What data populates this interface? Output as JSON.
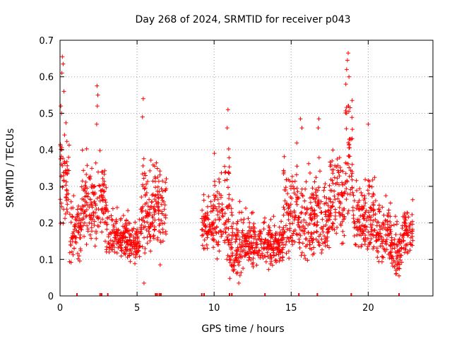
{
  "chart_data": {
    "type": "scatter",
    "title": "Day 268 of 2024, SRMTID for receiver p043",
    "xlabel": "GPS time / hours",
    "ylabel": "SRMTID / TECUs",
    "xlim": [
      0,
      24.2
    ],
    "ylim": [
      0,
      0.7
    ],
    "xticks": [
      0,
      5,
      10,
      15,
      20
    ],
    "xtick_labels": [
      "0",
      "5",
      "10",
      "15",
      "20"
    ],
    "yticks": [
      0,
      0.1,
      0.2,
      0.3,
      0.4,
      0.5,
      0.6,
      0.7
    ],
    "ytick_labels": [
      "0",
      "0.1",
      "0.2",
      "0.3",
      "0.4",
      "0.5",
      "0.6",
      "0.7"
    ],
    "grid": true,
    "marker": "+",
    "color": "#ff0000",
    "envelope": [
      {
        "x0": 0.0,
        "x1": 0.6,
        "lo": 0.18,
        "hi": 0.55
      },
      {
        "x0": 0.6,
        "x1": 1.4,
        "lo": 0.08,
        "hi": 0.33
      },
      {
        "x0": 1.4,
        "x1": 2.5,
        "lo": 0.12,
        "hi": 0.44
      },
      {
        "x0": 2.5,
        "x1": 3.0,
        "lo": 0.14,
        "hi": 0.42
      },
      {
        "x0": 3.0,
        "x1": 4.5,
        "lo": 0.1,
        "hi": 0.26
      },
      {
        "x0": 4.5,
        "x1": 5.2,
        "lo": 0.08,
        "hi": 0.24
      },
      {
        "x0": 5.2,
        "x1": 5.9,
        "lo": 0.1,
        "hi": 0.42
      },
      {
        "x0": 5.9,
        "x1": 6.9,
        "lo": 0.12,
        "hi": 0.45
      },
      {
        "x0": 9.2,
        "x1": 10.0,
        "lo": 0.12,
        "hi": 0.3
      },
      {
        "x0": 10.0,
        "x1": 11.0,
        "lo": 0.08,
        "hi": 0.46
      },
      {
        "x0": 11.0,
        "x1": 12.0,
        "lo": 0.04,
        "hi": 0.3
      },
      {
        "x0": 12.0,
        "x1": 13.0,
        "lo": 0.07,
        "hi": 0.26
      },
      {
        "x0": 13.0,
        "x1": 14.5,
        "lo": 0.07,
        "hi": 0.24
      },
      {
        "x0": 14.5,
        "x1": 15.5,
        "lo": 0.09,
        "hi": 0.44
      },
      {
        "x0": 15.5,
        "x1": 16.5,
        "lo": 0.08,
        "hi": 0.4
      },
      {
        "x0": 16.5,
        "x1": 17.5,
        "lo": 0.1,
        "hi": 0.4
      },
      {
        "x0": 17.5,
        "x1": 18.5,
        "lo": 0.13,
        "hi": 0.47
      },
      {
        "x0": 18.5,
        "x1": 19.0,
        "lo": 0.18,
        "hi": 0.66
      },
      {
        "x0": 19.0,
        "x1": 19.9,
        "lo": 0.12,
        "hi": 0.35
      },
      {
        "x0": 19.9,
        "x1": 20.5,
        "lo": 0.09,
        "hi": 0.42
      },
      {
        "x0": 20.5,
        "x1": 21.5,
        "lo": 0.08,
        "hi": 0.31
      },
      {
        "x0": 21.5,
        "x1": 22.2,
        "lo": 0.05,
        "hi": 0.24
      },
      {
        "x0": 22.2,
        "x1": 22.9,
        "lo": 0.1,
        "hi": 0.29
      }
    ],
    "spikes": [
      {
        "x": 0.15,
        "y": 0.655
      },
      {
        "x": 0.2,
        "y": 0.635
      },
      {
        "x": 0.12,
        "y": 0.61
      },
      {
        "x": 0.25,
        "y": 0.56
      },
      {
        "x": 0.05,
        "y": 0.52
      },
      {
        "x": 0.1,
        "y": 0.5
      },
      {
        "x": 2.4,
        "y": 0.575
      },
      {
        "x": 2.45,
        "y": 0.55
      },
      {
        "x": 2.42,
        "y": 0.52
      },
      {
        "x": 2.38,
        "y": 0.47
      },
      {
        "x": 5.4,
        "y": 0.54
      },
      {
        "x": 5.35,
        "y": 0.49
      },
      {
        "x": 5.45,
        "y": 0.035
      },
      {
        "x": 6.5,
        "y": 0.085
      },
      {
        "x": 10.9,
        "y": 0.51
      },
      {
        "x": 10.85,
        "y": 0.46
      },
      {
        "x": 11.6,
        "y": 0.035
      },
      {
        "x": 15.6,
        "y": 0.485
      },
      {
        "x": 15.7,
        "y": 0.46
      },
      {
        "x": 16.8,
        "y": 0.485
      },
      {
        "x": 16.75,
        "y": 0.46
      },
      {
        "x": 18.7,
        "y": 0.665
      },
      {
        "x": 18.65,
        "y": 0.645
      },
      {
        "x": 18.6,
        "y": 0.62
      },
      {
        "x": 18.75,
        "y": 0.6
      },
      {
        "x": 18.55,
        "y": 0.58
      },
      {
        "x": 18.7,
        "y": 0.52
      },
      {
        "x": 18.6,
        "y": 0.5
      },
      {
        "x": 20.0,
        "y": 0.47
      },
      {
        "x": 22.0,
        "y": 0.055
      },
      {
        "x": 21.8,
        "y": 0.06
      }
    ],
    "zero_marks": [
      1.1,
      2.6,
      2.7,
      3.1,
      6.2,
      6.3,
      6.45,
      6.55,
      9.2,
      9.35,
      11.0,
      11.15,
      13.3,
      15.5,
      16.7,
      18.9,
      22.0
    ]
  }
}
